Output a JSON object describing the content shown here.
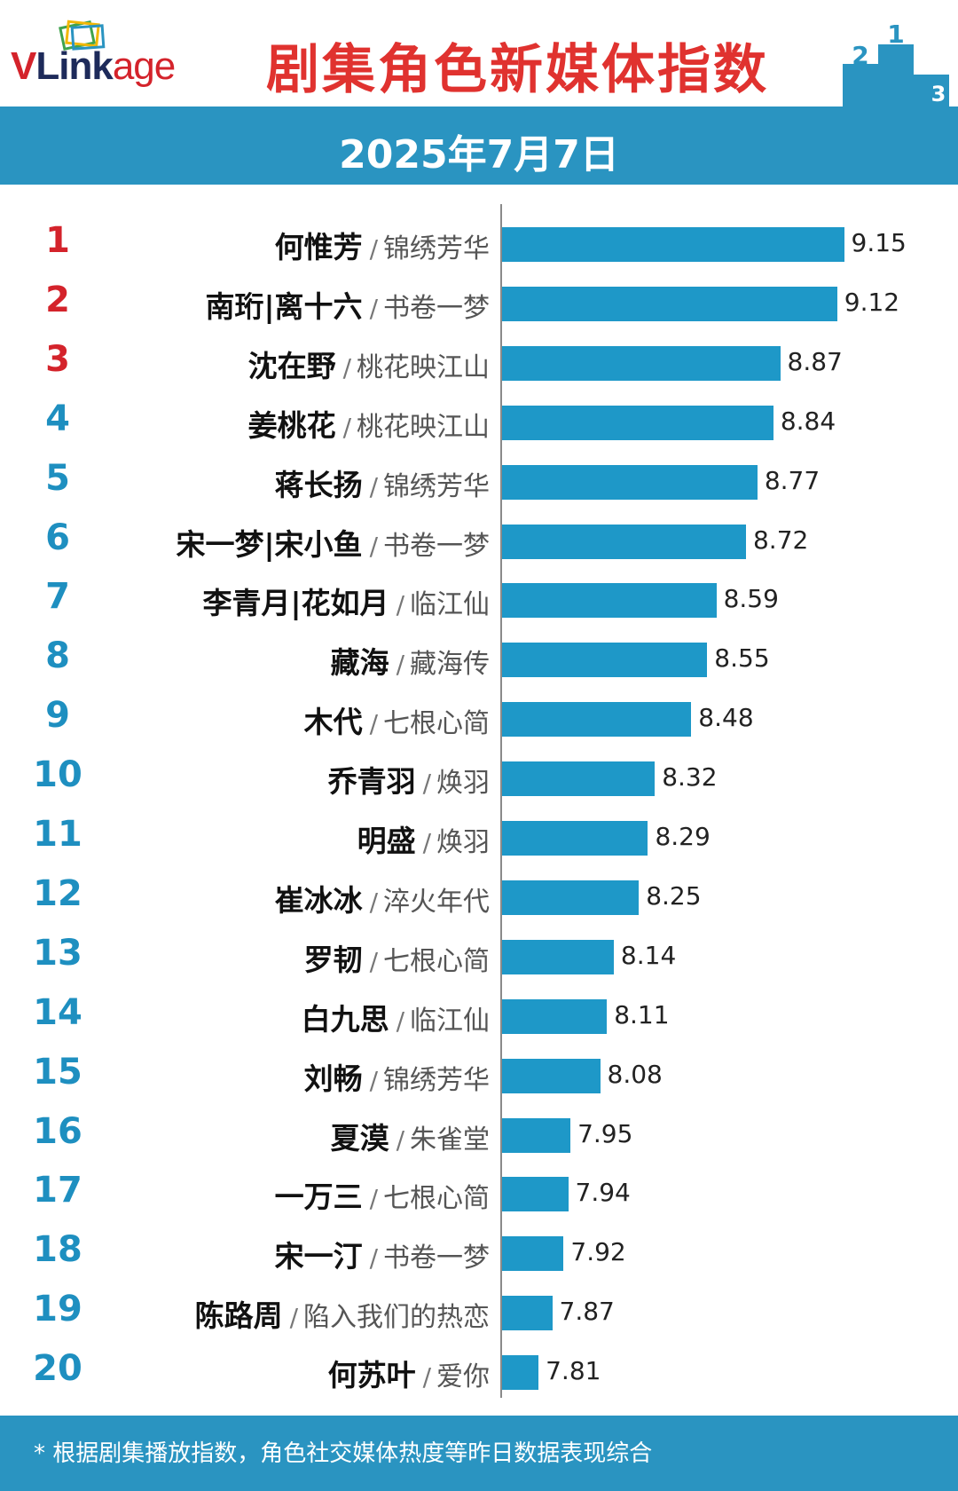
{
  "header": {
    "logo_text_v": "V",
    "logo_text_link": "Link",
    "logo_text_age": "age",
    "title": "剧集角色新媒体指数",
    "podium_labels": [
      "2",
      "1",
      "3"
    ]
  },
  "date": "2025年7月7日",
  "footer": {
    "note": "* 根据剧集播放指数，角色社交媒体热度等昨日数据表现综合"
  },
  "colors": {
    "bar": "#1e98c8",
    "band": "#2a94c1",
    "rank_top": "#d4232b",
    "rank_other": "#1e8fc0",
    "title": "#e0322f"
  },
  "chart_data": {
    "type": "bar",
    "orientation": "horizontal",
    "title": "剧集角色新媒体指数",
    "xlim": [
      7.65,
      9.21
    ],
    "grid": false,
    "items": [
      {
        "rank": "1",
        "name": "何惟芳",
        "drama": "锦绣芳华",
        "value": 9.15,
        "value_label": "9.15"
      },
      {
        "rank": "2",
        "name": "南珩|离十六",
        "drama": "书卷一梦",
        "value": 9.12,
        "value_label": "9.12"
      },
      {
        "rank": "3",
        "name": "沈在野",
        "drama": "桃花映江山",
        "value": 8.87,
        "value_label": "8.87"
      },
      {
        "rank": "4",
        "name": "姜桃花",
        "drama": "桃花映江山",
        "value": 8.84,
        "value_label": "8.84"
      },
      {
        "rank": "5",
        "name": "蒋长扬",
        "drama": "锦绣芳华",
        "value": 8.77,
        "value_label": "8.77"
      },
      {
        "rank": "6",
        "name": "宋一梦|宋小鱼",
        "drama": "书卷一梦",
        "value": 8.72,
        "value_label": "8.72"
      },
      {
        "rank": "7",
        "name": "李青月|花如月",
        "drama": "临江仙",
        "value": 8.59,
        "value_label": "8.59"
      },
      {
        "rank": "8",
        "name": "藏海",
        "drama": "藏海传",
        "value": 8.55,
        "value_label": "8.55"
      },
      {
        "rank": "9",
        "name": "木代",
        "drama": "七根心简",
        "value": 8.48,
        "value_label": "8.48"
      },
      {
        "rank": "10",
        "name": "乔青羽",
        "drama": "焕羽",
        "value": 8.32,
        "value_label": "8.32"
      },
      {
        "rank": "11",
        "name": "明盛",
        "drama": "焕羽",
        "value": 8.29,
        "value_label": "8.29"
      },
      {
        "rank": "12",
        "name": "崔冰冰",
        "drama": "淬火年代",
        "value": 8.25,
        "value_label": "8.25"
      },
      {
        "rank": "13",
        "name": "罗韧",
        "drama": "七根心简",
        "value": 8.14,
        "value_label": "8.14"
      },
      {
        "rank": "14",
        "name": "白九思",
        "drama": "临江仙",
        "value": 8.11,
        "value_label": "8.11"
      },
      {
        "rank": "15",
        "name": "刘畅",
        "drama": "锦绣芳华",
        "value": 8.08,
        "value_label": "8.08"
      },
      {
        "rank": "16",
        "name": "夏漠",
        "drama": "朱雀堂",
        "value": 7.95,
        "value_label": "7.95"
      },
      {
        "rank": "17",
        "name": "一万三",
        "drama": "七根心简",
        "value": 7.94,
        "value_label": "7.94"
      },
      {
        "rank": "18",
        "name": "宋一汀",
        "drama": "书卷一梦",
        "value": 7.92,
        "value_label": "7.92"
      },
      {
        "rank": "19",
        "name": "陈路周",
        "drama": "陷入我们的热恋",
        "value": 7.87,
        "value_label": "7.87"
      },
      {
        "rank": "20",
        "name": "何苏叶",
        "drama": "爱你",
        "value": 7.81,
        "value_label": "7.81"
      }
    ]
  }
}
